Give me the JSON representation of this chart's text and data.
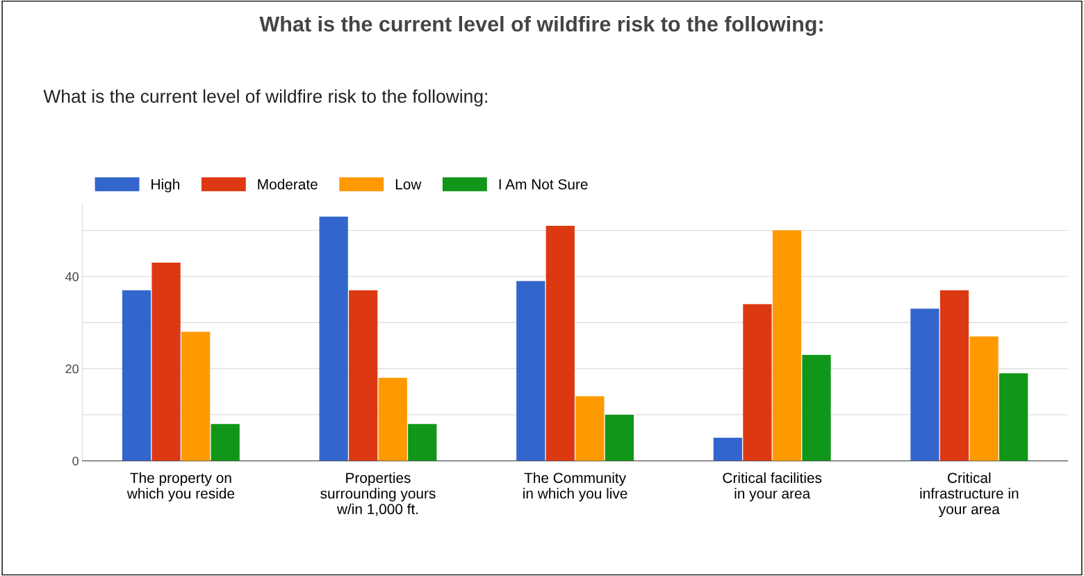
{
  "chart_data": {
    "type": "bar",
    "title": "What is the current level of wildfire risk to the following:",
    "subtitle": "What is the current level of wildfire risk to the following:",
    "categories": [
      "The property on\nwhich you reside",
      "Properties\nsurrounding yours\nw/in 1,000 ft.",
      "The Community\nin which you live",
      "Critical facilities\nin your area",
      "Critical\ninfrastructure in\nyour area"
    ],
    "series": [
      {
        "name": "High",
        "color": "#3366cc",
        "values": [
          37,
          53,
          39,
          5,
          33
        ]
      },
      {
        "name": "Moderate",
        "color": "#dc3912",
        "values": [
          43,
          37,
          51,
          34,
          37
        ]
      },
      {
        "name": "Low",
        "color": "#ff9900",
        "values": [
          28,
          18,
          14,
          50,
          27
        ]
      },
      {
        "name": "I Am Not Sure",
        "color": "#109618",
        "values": [
          8,
          8,
          10,
          23,
          19
        ]
      }
    ],
    "ylim": [
      0,
      56
    ],
    "yticks": [
      0,
      {
        "value": 10,
        "label": null
      },
      20,
      {
        "value": 30,
        "label": null
      },
      40,
      {
        "value": 50,
        "label": null
      }
    ],
    "grid": "y",
    "legend": "top left"
  }
}
